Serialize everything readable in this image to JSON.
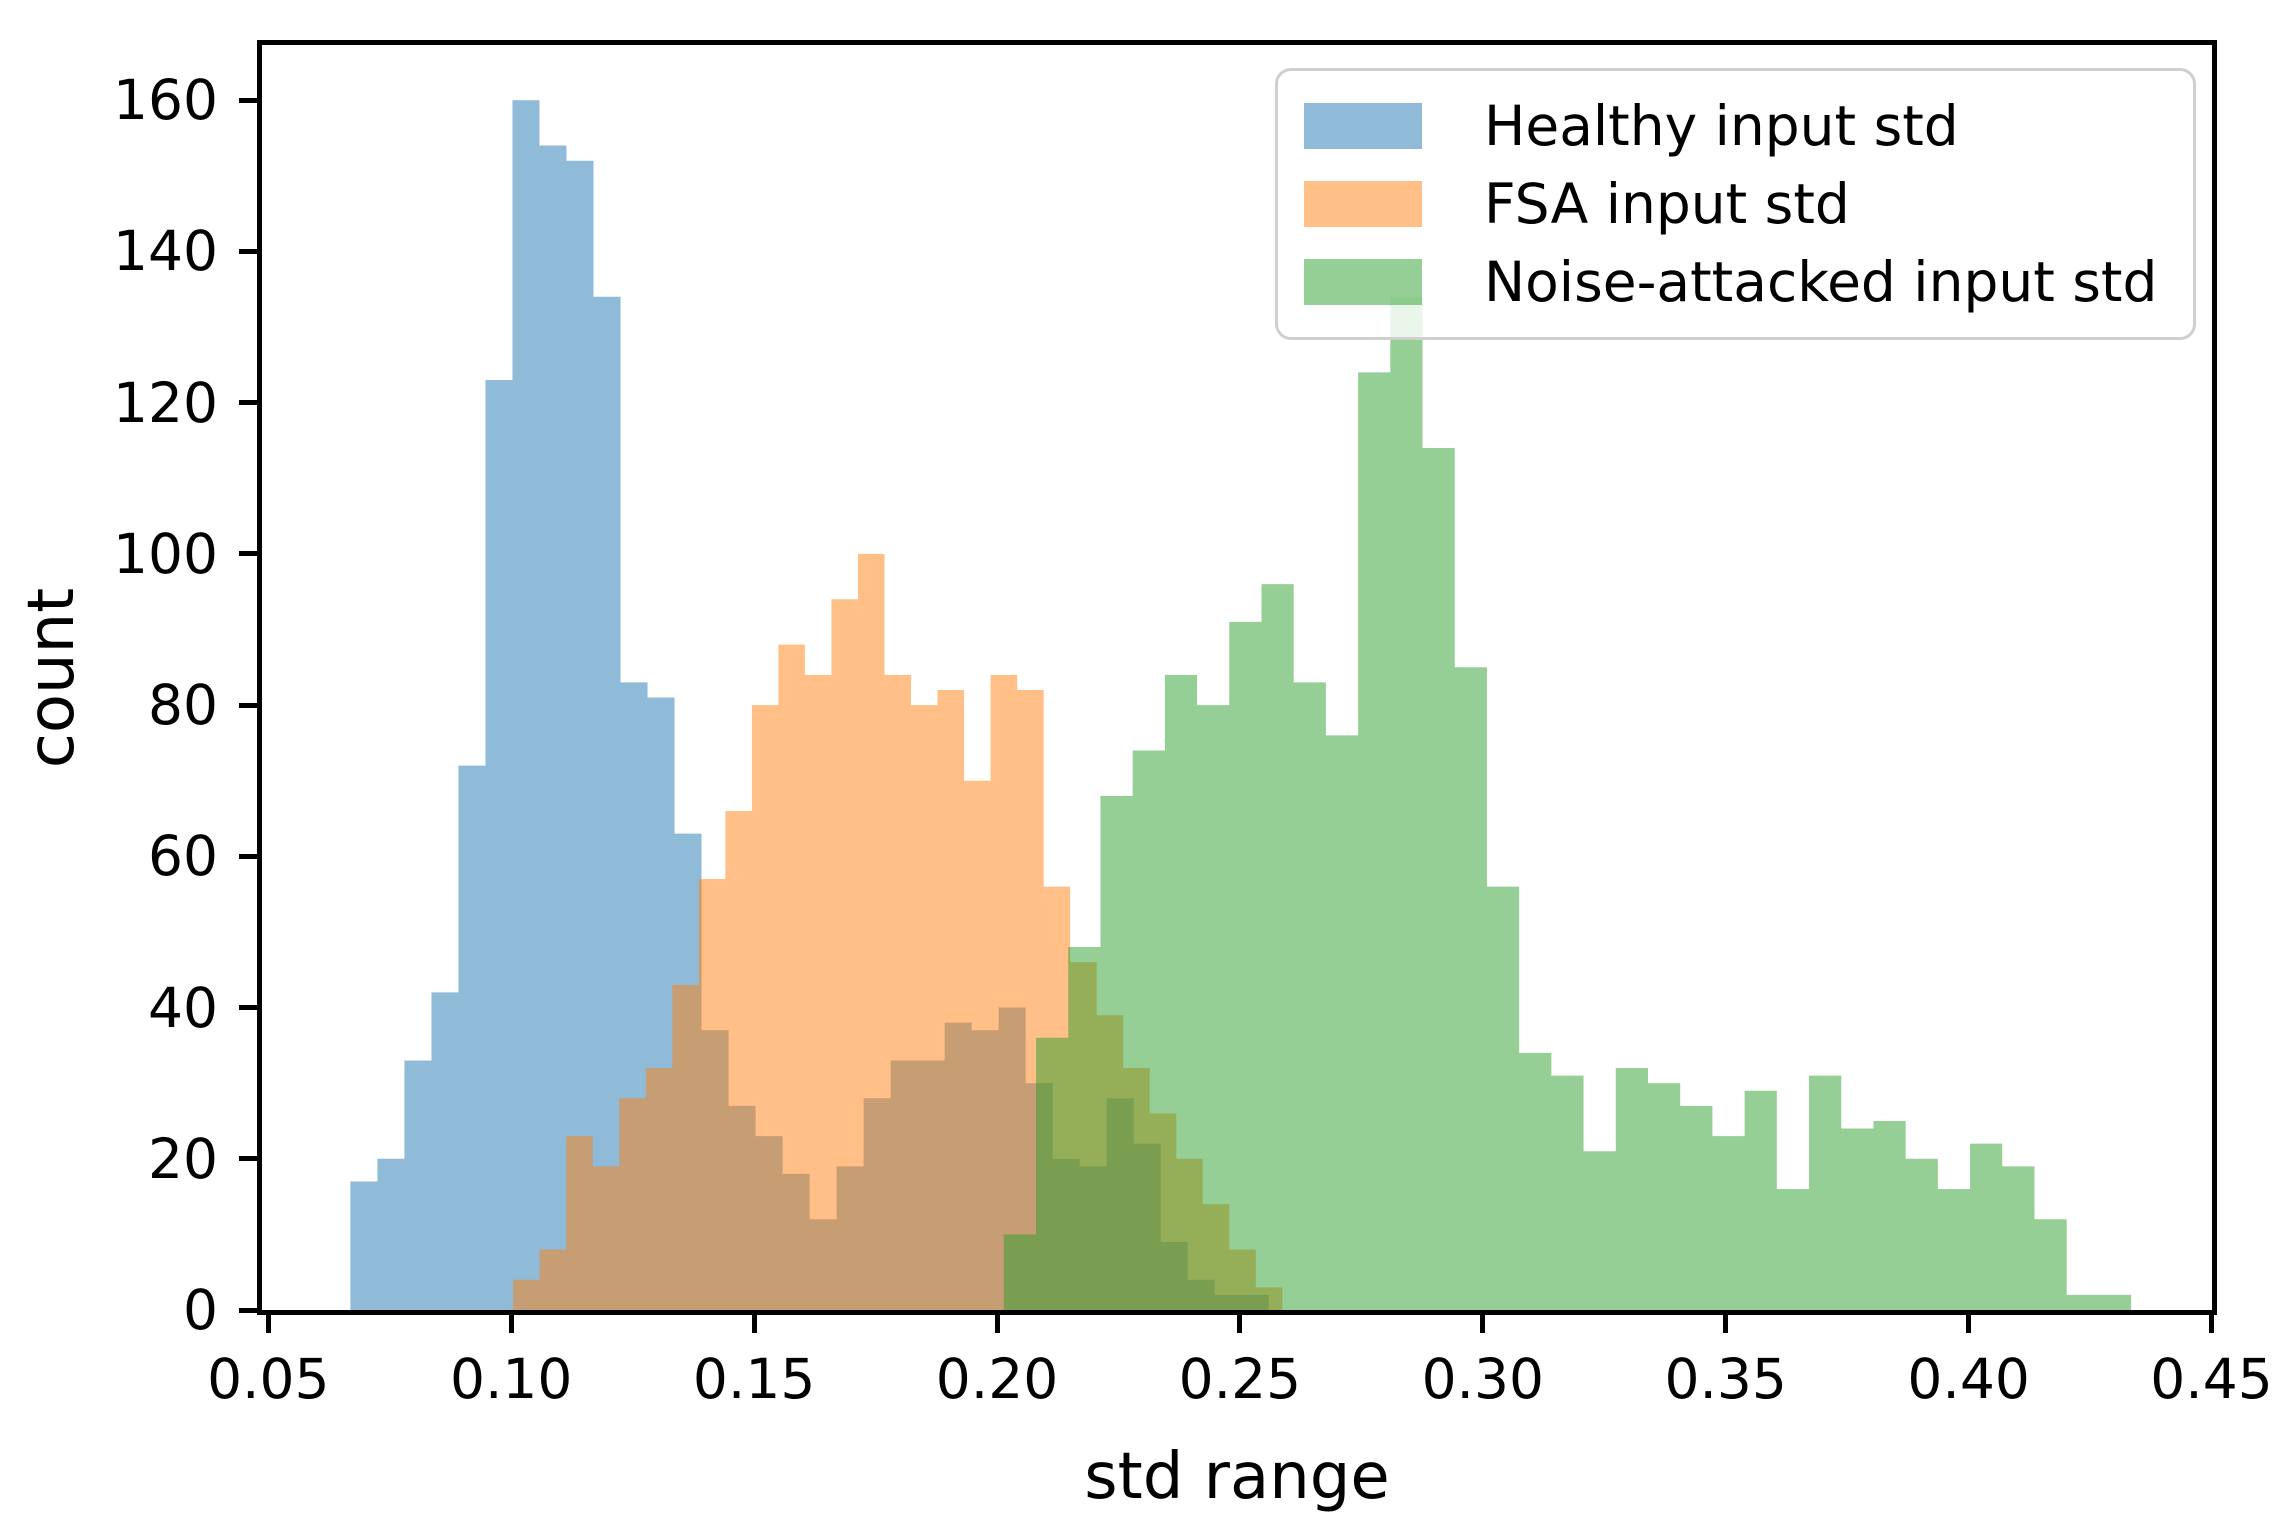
{
  "chart_data": {
    "type": "bar",
    "subtype": "overlaid-histogram",
    "title": "",
    "xlabel": "std range",
    "ylabel": "count",
    "xlim": [
      0.0487,
      0.4501
    ],
    "ylim": [
      0,
      167.3
    ],
    "grid": false,
    "x_ticks": [
      {
        "v": 0.05,
        "label": "0.05"
      },
      {
        "v": 0.1,
        "label": "0.10"
      },
      {
        "v": 0.15,
        "label": "0.15"
      },
      {
        "v": 0.2,
        "label": "0.20"
      },
      {
        "v": 0.25,
        "label": "0.25"
      },
      {
        "v": 0.3,
        "label": "0.30"
      },
      {
        "v": 0.35,
        "label": "0.35"
      },
      {
        "v": 0.4,
        "label": "0.40"
      },
      {
        "v": 0.45,
        "label": "0.45"
      }
    ],
    "y_ticks": [
      {
        "v": 0,
        "label": "0"
      },
      {
        "v": 20,
        "label": "20"
      },
      {
        "v": 40,
        "label": "40"
      },
      {
        "v": 60,
        "label": "60"
      },
      {
        "v": 80,
        "label": "80"
      },
      {
        "v": 100,
        "label": "100"
      },
      {
        "v": 120,
        "label": "120"
      },
      {
        "v": 140,
        "label": "140"
      },
      {
        "v": 160,
        "label": "160"
      }
    ],
    "legend": {
      "position": "upper right",
      "entries": [
        "Healthy input std",
        "FSA input std",
        "Noise-attacked input std"
      ]
    },
    "series": [
      {
        "name": "Healthy input std",
        "base_color": "#1f77b4",
        "alpha": 0.5,
        "fill_rgba": "rgba(31,119,180,0.5)",
        "bin_start": 0.0669,
        "bin_width": 0.00556,
        "counts": [
          17,
          20,
          33,
          42,
          72,
          123,
          160,
          154,
          152,
          134,
          83,
          81,
          63,
          37,
          27,
          23,
          18,
          12,
          19,
          28,
          33,
          33,
          38,
          37,
          40,
          30,
          20,
          19,
          28,
          22,
          9,
          4,
          2,
          2
        ]
      },
      {
        "name": "FSA input std",
        "base_color": "#ff7f0e",
        "alpha": 0.5,
        "fill_rgba": "rgba(255,127,14,0.5)",
        "bin_start": 0.1004,
        "bin_width": 0.00546,
        "counts": [
          4,
          8,
          23,
          19,
          28,
          32,
          43,
          57,
          66,
          80,
          88,
          84,
          94,
          100,
          84,
          80,
          82,
          70,
          84,
          82,
          56,
          46,
          39,
          32,
          26,
          20,
          14,
          8,
          3
        ]
      },
      {
        "name": "Noise-attacked input std",
        "base_color": "#2ca02c",
        "alpha": 0.5,
        "fill_rgba": "rgba(44,160,44,0.5)",
        "bin_start": 0.2014,
        "bin_width": 0.00663,
        "counts": [
          10,
          36,
          48,
          68,
          74,
          84,
          80,
          91,
          96,
          83,
          76,
          124,
          134,
          114,
          85,
          56,
          34,
          31,
          21,
          32,
          30,
          27,
          23,
          29,
          16,
          31,
          24,
          25,
          20,
          16,
          22,
          19,
          12,
          2,
          2
        ]
      }
    ]
  }
}
